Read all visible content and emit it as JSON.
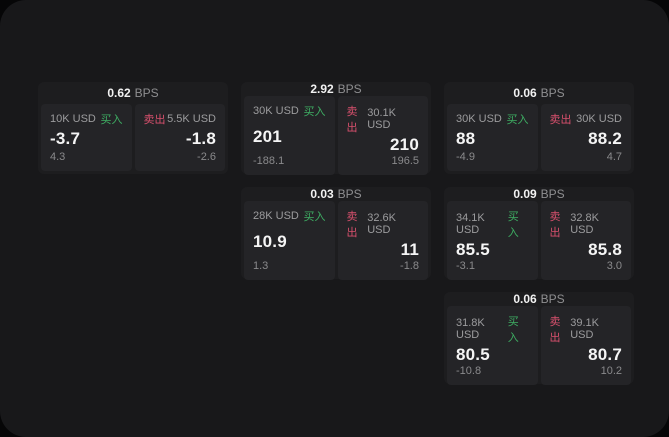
{
  "labels": {
    "buy": "买入",
    "sell": "卖出",
    "unit": "BPS"
  },
  "colors": {
    "buy_green": "#3eae63",
    "sell_red": "#d8506d",
    "panel_bg": "#18181a",
    "card_bg": "#1d1d1f",
    "subcard_bg": "#242427"
  },
  "cards": [
    {
      "row": 1,
      "col": 1,
      "bps": "0.62",
      "buy": {
        "amount": "10K USD",
        "price": "-3.7",
        "delta": "4.3"
      },
      "sell": {
        "amount": "5.5K USD",
        "price": "-1.8",
        "delta": "-2.6"
      }
    },
    {
      "row": 1,
      "col": 2,
      "bps": "2.92",
      "buy": {
        "amount": "30K USD",
        "price": "201",
        "delta": "-188.1"
      },
      "sell": {
        "amount": "30.1K USD",
        "price": "210",
        "delta": "196.5"
      }
    },
    {
      "row": 1,
      "col": 3,
      "bps": "0.06",
      "buy": {
        "amount": "30K USD",
        "price": "88",
        "delta": "-4.9"
      },
      "sell": {
        "amount": "30K USD",
        "price": "88.2",
        "delta": "4.7"
      }
    },
    {
      "row": 2,
      "col": 2,
      "bps": "0.03",
      "buy": {
        "amount": "28K USD",
        "price": "10.9",
        "delta": "1.3"
      },
      "sell": {
        "amount": "32.6K USD",
        "price": "11",
        "delta": "-1.8"
      }
    },
    {
      "row": 2,
      "col": 3,
      "bps": "0.09",
      "buy": {
        "amount": "34.1K USD",
        "price": "85.5",
        "delta": "-3.1"
      },
      "sell": {
        "amount": "32.8K USD",
        "price": "85.8",
        "delta": "3.0"
      }
    },
    {
      "row": 3,
      "col": 3,
      "bps": "0.06",
      "buy": {
        "amount": "31.8K USD",
        "price": "80.5",
        "delta": "-10.8"
      },
      "sell": {
        "amount": "39.1K USD",
        "price": "80.7",
        "delta": "10.2"
      }
    }
  ]
}
